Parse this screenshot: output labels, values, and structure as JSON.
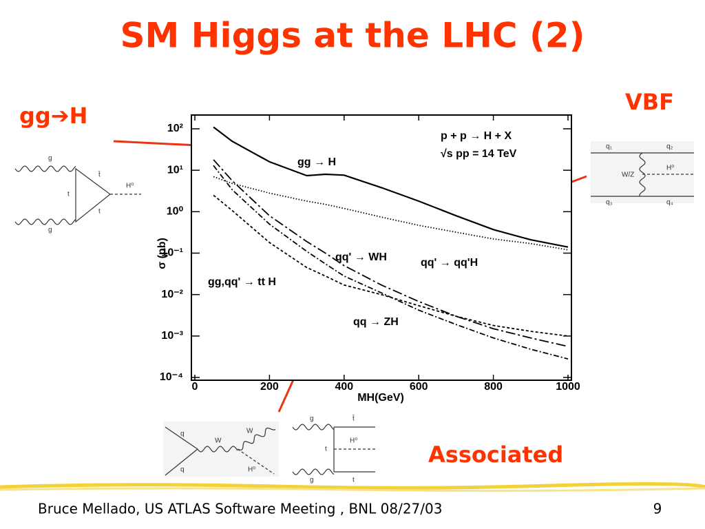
{
  "title": "SM Higgs at the LHC (2)",
  "callouts": {
    "ggh": "gg➔H",
    "vbf": "VBF",
    "associated": "Associated"
  },
  "footer": {
    "text": "Bruce Mellado, US ATLAS Software Meeting , BNL 08/27/03",
    "page": "9"
  },
  "diagrams": {
    "ggh": [
      "g",
      "t̄",
      "H⁰",
      "t",
      "t",
      "g"
    ],
    "vbf": [
      "q₁",
      "q₂",
      "W/Z",
      "H⁰",
      "q₃",
      "q₄"
    ],
    "wh": [
      "q",
      "W",
      "W",
      "q",
      "H⁰"
    ],
    "tth": [
      "g",
      "t̄",
      "H⁰",
      "t",
      "g",
      "t"
    ]
  },
  "chart_data": {
    "type": "line",
    "annotations": [
      "p + p → H + X",
      "√s pp = 14 TeV"
    ],
    "xlabel": "MH(GeV)",
    "ylabel": "σ (pb)",
    "xlim": [
      0,
      1000
    ],
    "xticks": [
      0,
      200,
      400,
      600,
      800,
      1000
    ],
    "ylim": [
      0.0001,
      100
    ],
    "log_y": true,
    "yticks": [
      {
        "value": 100,
        "label": "10²"
      },
      {
        "value": 10,
        "label": "10¹"
      },
      {
        "value": 1,
        "label": "10⁰"
      },
      {
        "value": 0.1,
        "label": "10⁻¹"
      },
      {
        "value": 0.01,
        "label": "10⁻²"
      },
      {
        "value": 0.001,
        "label": "10⁻³"
      },
      {
        "value": 0.0001,
        "label": "10⁻⁴"
      }
    ],
    "x": [
      50,
      100,
      200,
      300,
      350,
      400,
      500,
      600,
      700,
      800,
      900,
      1000
    ],
    "series": [
      {
        "name": "gg → H",
        "color": "#000000",
        "line_style": "solid",
        "values": [
          110,
          50,
          16,
          7.4,
          8,
          7.6,
          3.8,
          1.8,
          0.8,
          0.37,
          0.21,
          0.14
        ]
      },
      {
        "name": "qq' → qq'H",
        "color": "#000000",
        "line_style": "dotted",
        "values": [
          7,
          4.8,
          2.8,
          1.8,
          1.5,
          1.2,
          0.74,
          0.47,
          0.32,
          0.22,
          0.17,
          0.12
        ]
      },
      {
        "name": "qq' → WH",
        "color": "#000000",
        "line_style": "longdashdot",
        "values": [
          18,
          5.6,
          0.8,
          0.19,
          0.1,
          0.05,
          0.017,
          0.0068,
          0.003,
          0.0015,
          0.0009,
          0.00056
        ]
      },
      {
        "name": "qq → ZH",
        "color": "#000000",
        "line_style": "dashdot",
        "values": [
          13,
          3.4,
          0.5,
          0.11,
          0.055,
          0.028,
          0.011,
          0.0042,
          0.0019,
          0.0009,
          0.00048,
          0.00028
        ]
      },
      {
        "name": "gg,qq' → tt H",
        "color": "#000000",
        "line_style": "dashed",
        "values": [
          2.5,
          1.07,
          0.18,
          0.045,
          0.028,
          0.017,
          0.01,
          0.0054,
          0.003,
          0.0018,
          0.0013,
          0.001
        ]
      }
    ]
  }
}
